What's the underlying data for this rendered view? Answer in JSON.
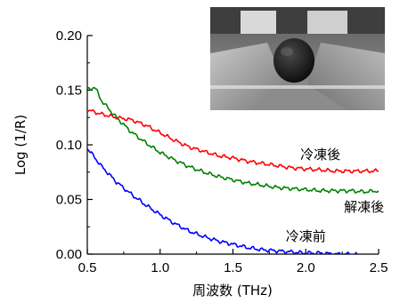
{
  "chart_data": {
    "type": "line",
    "xlabel": "周波数 (THz)",
    "ylabel": "Log (1/R)",
    "xlim": [
      0.5,
      2.5
    ],
    "ylim": [
      0.0,
      0.2
    ],
    "x_ticks": [
      "0.5",
      "1.0",
      "1.5",
      "2.0",
      "2.5"
    ],
    "y_ticks": [
      "0.00",
      "0.05",
      "0.10",
      "0.15",
      "0.20"
    ],
    "grid": false,
    "legend": "none",
    "series": [
      {
        "name": "冷凍後",
        "color": "#ff0000",
        "x": [
          0.5,
          0.6,
          0.7,
          0.8,
          0.9,
          1.0,
          1.1,
          1.2,
          1.3,
          1.4,
          1.5,
          1.6,
          1.7,
          1.8,
          1.9,
          2.0,
          2.1,
          2.2,
          2.3,
          2.4,
          2.5
        ],
        "y": [
          0.132,
          0.128,
          0.125,
          0.123,
          0.118,
          0.111,
          0.104,
          0.098,
          0.094,
          0.09,
          0.088,
          0.085,
          0.083,
          0.081,
          0.079,
          0.078,
          0.077,
          0.076,
          0.076,
          0.076,
          0.076
        ]
      },
      {
        "name": "解凍後",
        "color": "#008000",
        "x": [
          0.5,
          0.55,
          0.6,
          0.7,
          0.8,
          0.9,
          1.0,
          1.1,
          1.2,
          1.3,
          1.4,
          1.5,
          1.6,
          1.7,
          1.8,
          1.9,
          2.0,
          2.1,
          2.2,
          2.3,
          2.4,
          2.5
        ],
        "y": [
          0.15,
          0.153,
          0.14,
          0.125,
          0.112,
          0.102,
          0.093,
          0.086,
          0.08,
          0.075,
          0.071,
          0.068,
          0.065,
          0.063,
          0.061,
          0.06,
          0.059,
          0.058,
          0.058,
          0.058,
          0.057,
          0.058
        ]
      },
      {
        "name": "冷凍前",
        "color": "#0000ff",
        "x": [
          0.5,
          0.6,
          0.7,
          0.8,
          0.9,
          1.0,
          1.1,
          1.2,
          1.3,
          1.4,
          1.5,
          1.6,
          1.7,
          1.8,
          1.9,
          2.0,
          2.1,
          2.2,
          2.3,
          2.35
        ],
        "y": [
          0.097,
          0.08,
          0.066,
          0.055,
          0.045,
          0.036,
          0.028,
          0.021,
          0.016,
          0.012,
          0.009,
          0.006,
          0.004,
          0.003,
          0.002,
          0.001,
          0.001,
          0.0,
          0.0,
          0.0
        ]
      }
    ],
    "labels": [
      {
        "text": "冷凍後",
        "color_of": "冷凍後",
        "x": 2.1,
        "y": 0.087
      },
      {
        "text": "解凍後",
        "color_of": "解凍後",
        "x": 2.4,
        "y": 0.039
      },
      {
        "text": "冷凍前",
        "color_of": "冷凍前",
        "x": 2.0,
        "y": 0.012
      }
    ],
    "inset": {
      "image": "photo-of-sample-in-terahertz-measurement-apparatus"
    }
  }
}
